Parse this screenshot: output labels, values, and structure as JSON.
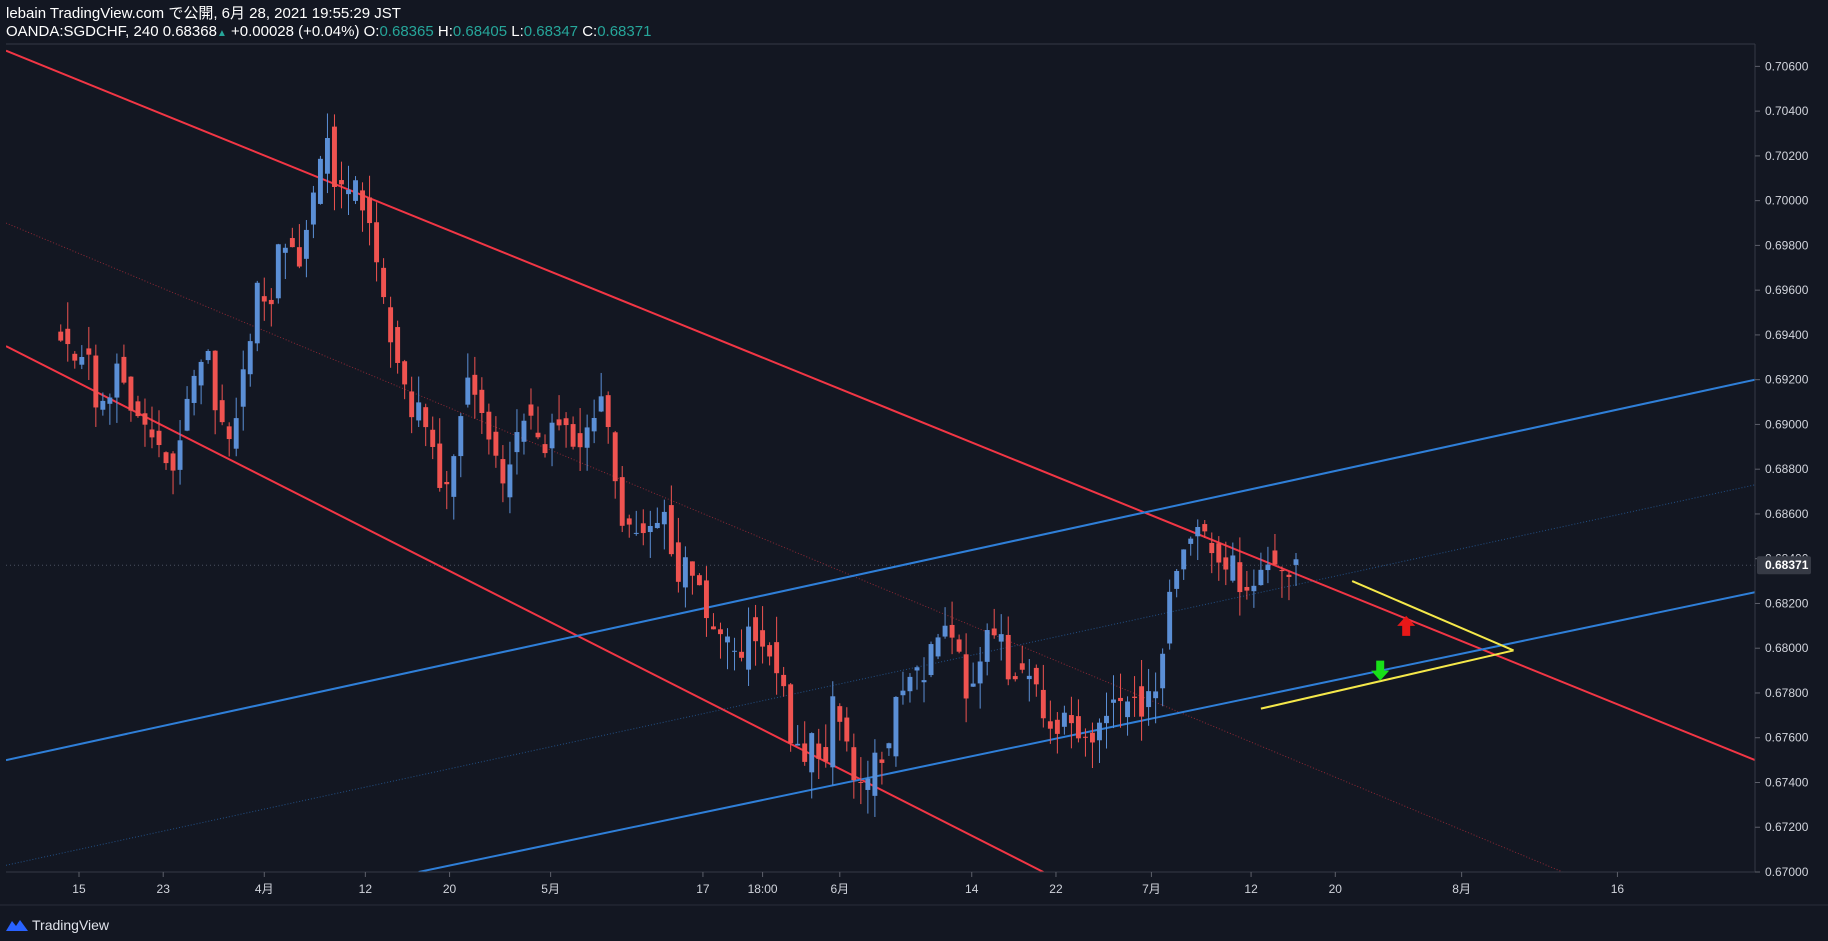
{
  "header": {
    "line1": "lebain TradingView.com で公開, 6月 28, 2021 19:55:29 JST",
    "symbol_text": "OANDA:SGDCHF, 240 0.68368",
    "up_arrow": "▲",
    "change_text": "+0.00028 (+0.04%)",
    "o_label": "O:",
    "o_value": "0.68365",
    "h_label": "H:",
    "h_value": "0.68405",
    "l_label": "L:",
    "l_value": "0.68347",
    "c_label": "C:",
    "c_value": "0.68371"
  },
  "footer": {
    "brand": "TradingView",
    "logo_icon": "tradingview-logo-icon"
  },
  "colors": {
    "background": "#131722",
    "up_candle": "#5b8fd6",
    "down_candle": "#ef5350",
    "red_channel": "#f23645",
    "blue_channel": "#2f7fd8",
    "yellow_triangle": "#f5e84a",
    "up_arrow": "#e81818",
    "down_arrow": "#18e018",
    "axis_text": "#d1d4dc"
  },
  "chart_data": {
    "type": "candlestick",
    "symbol": "OANDA:SGDCHF",
    "timeframe": "240",
    "last_price_label": "0.68371",
    "ylim": [
      0.67,
      0.707
    ],
    "y_ticks": [
      "0.70600",
      "0.70400",
      "0.70200",
      "0.70000",
      "0.69800",
      "0.69600",
      "0.69400",
      "0.69200",
      "0.69000",
      "0.68800",
      "0.68600",
      "0.68400",
      "0.68200",
      "0.68000",
      "0.67800",
      "0.67600",
      "0.67400",
      "0.67200",
      "0.67000"
    ],
    "x_ticks": [
      "15",
      "23",
      "4月",
      "12",
      "20",
      "5月",
      "17",
      "18:00",
      "6月",
      "14",
      "22",
      "7月",
      "12",
      "20",
      "8月",
      "16"
    ],
    "close_path": [
      [
        0,
        0.694
      ],
      [
        2,
        0.6928
      ],
      [
        4,
        0.6933
      ],
      [
        5,
        0.6905
      ],
      [
        7,
        0.6912
      ],
      [
        8,
        0.6927
      ],
      [
        10,
        0.691
      ],
      [
        11,
        0.6903
      ],
      [
        13,
        0.6895
      ],
      [
        14,
        0.6888
      ],
      [
        16,
        0.688
      ],
      [
        17,
        0.6895
      ],
      [
        19,
        0.692
      ],
      [
        21,
        0.693
      ],
      [
        22,
        0.691
      ],
      [
        24,
        0.689
      ],
      [
        25,
        0.6905
      ],
      [
        27,
        0.694
      ],
      [
        28,
        0.696
      ],
      [
        30,
        0.6955
      ],
      [
        31,
        0.698
      ],
      [
        33,
        0.698
      ],
      [
        34,
        0.697
      ],
      [
        35,
        0.699
      ],
      [
        37,
        0.7015
      ],
      [
        38,
        0.703
      ],
      [
        39,
        0.7008
      ],
      [
        41,
        0.7002
      ],
      [
        42,
        0.7008
      ],
      [
        44,
        0.699
      ],
      [
        45,
        0.697
      ],
      [
        47,
        0.694
      ],
      [
        48,
        0.6928
      ],
      [
        50,
        0.69
      ],
      [
        51,
        0.691
      ],
      [
        53,
        0.689
      ],
      [
        54,
        0.6875
      ],
      [
        55,
        0.687
      ],
      [
        57,
        0.6905
      ],
      [
        58,
        0.692
      ],
      [
        60,
        0.6905
      ],
      [
        61,
        0.6895
      ],
      [
        63,
        0.687
      ],
      [
        64,
        0.6885
      ],
      [
        66,
        0.6905
      ],
      [
        67,
        0.69
      ],
      [
        69,
        0.6888
      ],
      [
        70,
        0.69
      ],
      [
        72,
        0.69
      ],
      [
        74,
        0.6888
      ],
      [
        75,
        0.69
      ],
      [
        77,
        0.691
      ],
      [
        78,
        0.6895
      ],
      [
        80,
        0.6858
      ],
      [
        81,
        0.6855
      ],
      [
        83,
        0.685
      ],
      [
        85,
        0.6855
      ],
      [
        86,
        0.686
      ],
      [
        88,
        0.683
      ],
      [
        89,
        0.684
      ],
      [
        91,
        0.683
      ],
      [
        92,
        0.681
      ],
      [
        94,
        0.6805
      ],
      [
        96,
        0.68
      ],
      [
        97,
        0.6793
      ],
      [
        98,
        0.681
      ],
      [
        100,
        0.68
      ],
      [
        101,
        0.68
      ],
      [
        103,
        0.678
      ],
      [
        104,
        0.676
      ],
      [
        106,
        0.6748
      ],
      [
        107,
        0.676
      ],
      [
        109,
        0.6748
      ],
      [
        110,
        0.6775
      ],
      [
        112,
        0.6758
      ],
      [
        113,
        0.674
      ],
      [
        115,
        0.6738
      ],
      [
        116,
        0.675
      ],
      [
        118,
        0.6755
      ],
      [
        119,
        0.6775
      ],
      [
        121,
        0.679
      ],
      [
        123,
        0.6785
      ],
      [
        124,
        0.68
      ],
      [
        126,
        0.6808
      ],
      [
        128,
        0.68
      ],
      [
        129,
        0.678
      ],
      [
        131,
        0.6795
      ],
      [
        132,
        0.6805
      ],
      [
        134,
        0.6808
      ],
      [
        135,
        0.679
      ],
      [
        137,
        0.679
      ],
      [
        139,
        0.6785
      ],
      [
        140,
        0.677
      ],
      [
        142,
        0.6765
      ],
      [
        144,
        0.677
      ],
      [
        145,
        0.6762
      ],
      [
        147,
        0.6758
      ],
      [
        148,
        0.6768
      ],
      [
        150,
        0.6778
      ],
      [
        151,
        0.6773
      ],
      [
        153,
        0.678
      ],
      [
        154,
        0.6772
      ],
      [
        156,
        0.6782
      ],
      [
        157,
        0.68
      ],
      [
        158,
        0.6825
      ],
      [
        159,
        0.6838
      ],
      [
        161,
        0.685
      ],
      [
        162,
        0.6857
      ],
      [
        163,
        0.685
      ],
      [
        164,
        0.6845
      ],
      [
        165,
        0.6838
      ],
      [
        166,
        0.6832
      ],
      [
        167,
        0.6838
      ],
      [
        168,
        0.6828
      ],
      [
        169,
        0.6822
      ],
      [
        170,
        0.6826
      ],
      [
        171,
        0.6838
      ],
      [
        172,
        0.684
      ],
      [
        173,
        0.6838
      ],
      [
        174,
        0.6832
      ],
      [
        175,
        0.6835
      ],
      [
        176,
        0.6837
      ]
    ],
    "trend_lines": [
      {
        "name": "red-channel-upper",
        "color": "red",
        "from": [
          -7.8,
          0.7067
        ],
        "to": [
          241.4,
          0.675
        ]
      },
      {
        "name": "red-channel-lower",
        "color": "red",
        "from": [
          -7.8,
          0.6935
        ],
        "to": [
          140.0,
          0.67
        ]
      },
      {
        "name": "red-channel-mid",
        "color": "red",
        "dotted": true,
        "from": [
          -7.8,
          0.699
        ],
        "to": [
          214.0,
          0.67
        ]
      },
      {
        "name": "blue-channel-upper",
        "color": "blue",
        "from": [
          -7.8,
          0.675
        ],
        "to": [
          241.4,
          0.692
        ]
      },
      {
        "name": "blue-channel-lower",
        "color": "blue",
        "from": [
          51.0,
          0.67
        ],
        "to": [
          241.4,
          0.6825
        ]
      },
      {
        "name": "blue-channel-mid",
        "color": "blue",
        "dotted": true,
        "from": [
          -7.8,
          0.6703
        ],
        "to": [
          241.4,
          0.6873
        ]
      },
      {
        "name": "yellow-upper",
        "color": "yellow",
        "from": [
          184.0,
          0.683
        ],
        "to": [
          207.0,
          0.6799
        ]
      },
      {
        "name": "yellow-lower",
        "color": "yellow",
        "from": [
          171.0,
          0.6773
        ],
        "to": [
          207.0,
          0.6799
        ]
      }
    ],
    "markers": [
      {
        "name": "red-up-arrow",
        "direction": "up",
        "color": "red",
        "x": 191.7,
        "y": 0.681
      },
      {
        "name": "green-down-arrow",
        "direction": "down",
        "color": "green",
        "x": 188.0,
        "y": 0.679
      }
    ],
    "time_axis": {
      "x_range": [
        -7.8,
        241.4
      ],
      "tick_positions": [
        2.6,
        14.6,
        29.0,
        43.4,
        55.4,
        69.8,
        91.5,
        100.0,
        111.0,
        129.8,
        141.8,
        155.4,
        169.6,
        181.6,
        199.6,
        221.8
      ]
    },
    "grid": false
  }
}
